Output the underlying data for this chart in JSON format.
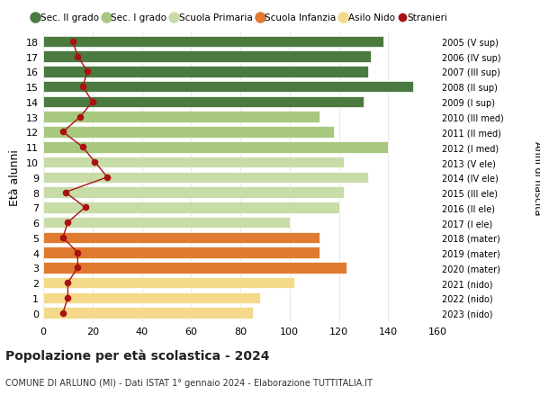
{
  "ages": [
    0,
    1,
    2,
    3,
    4,
    5,
    6,
    7,
    8,
    9,
    10,
    11,
    12,
    13,
    14,
    15,
    16,
    17,
    18
  ],
  "bar_values": [
    85,
    88,
    102,
    123,
    112,
    112,
    100,
    120,
    122,
    132,
    122,
    140,
    118,
    112,
    130,
    150,
    132,
    133,
    138
  ],
  "stranieri": [
    8,
    10,
    10,
    14,
    14,
    8,
    10,
    17,
    9,
    26,
    21,
    16,
    8,
    15,
    20,
    16,
    18,
    14,
    12
  ],
  "anni_nascita": [
    "2023 (nido)",
    "2022 (nido)",
    "2021 (nido)",
    "2020 (mater)",
    "2019 (mater)",
    "2018 (mater)",
    "2017 (I ele)",
    "2016 (II ele)",
    "2015 (III ele)",
    "2014 (IV ele)",
    "2013 (V ele)",
    "2012 (I med)",
    "2011 (II med)",
    "2010 (III med)",
    "2009 (I sup)",
    "2008 (II sup)",
    "2007 (III sup)",
    "2006 (IV sup)",
    "2005 (V sup)"
  ],
  "bar_colors": [
    "#f5d98b",
    "#f5d98b",
    "#f5d98b",
    "#e07a30",
    "#e07a30",
    "#e07a30",
    "#c8dca8",
    "#c8dca8",
    "#c8dca8",
    "#c8dca8",
    "#c8dca8",
    "#a8c880",
    "#a8c880",
    "#a8c880",
    "#4a7a40",
    "#4a7a40",
    "#4a7a40",
    "#4a7a40",
    "#4a7a40"
  ],
  "legend_labels": [
    "Sec. II grado",
    "Sec. I grado",
    "Scuola Primaria",
    "Scuola Infanzia",
    "Asilo Nido",
    "Stranieri"
  ],
  "legend_colors": [
    "#4a7a40",
    "#a8c880",
    "#c8dca8",
    "#e07a30",
    "#f5d98b",
    "#aa1111"
  ],
  "ylabel": "Età alunni",
  "right_ylabel": "Anni di nascita",
  "title": "Popolazione per età scolastica - 2024",
  "subtitle": "COMUNE DI ARLUNO (MI) - Dati ISTAT 1° gennaio 2024 - Elaborazione TUTTITALIA.IT",
  "xlim": [
    0,
    160
  ],
  "xticks": [
    0,
    20,
    40,
    60,
    80,
    100,
    120,
    140,
    160
  ],
  "stranieri_color": "#aa1111",
  "bar_height": 0.75,
  "grid_color": "#dddddd"
}
